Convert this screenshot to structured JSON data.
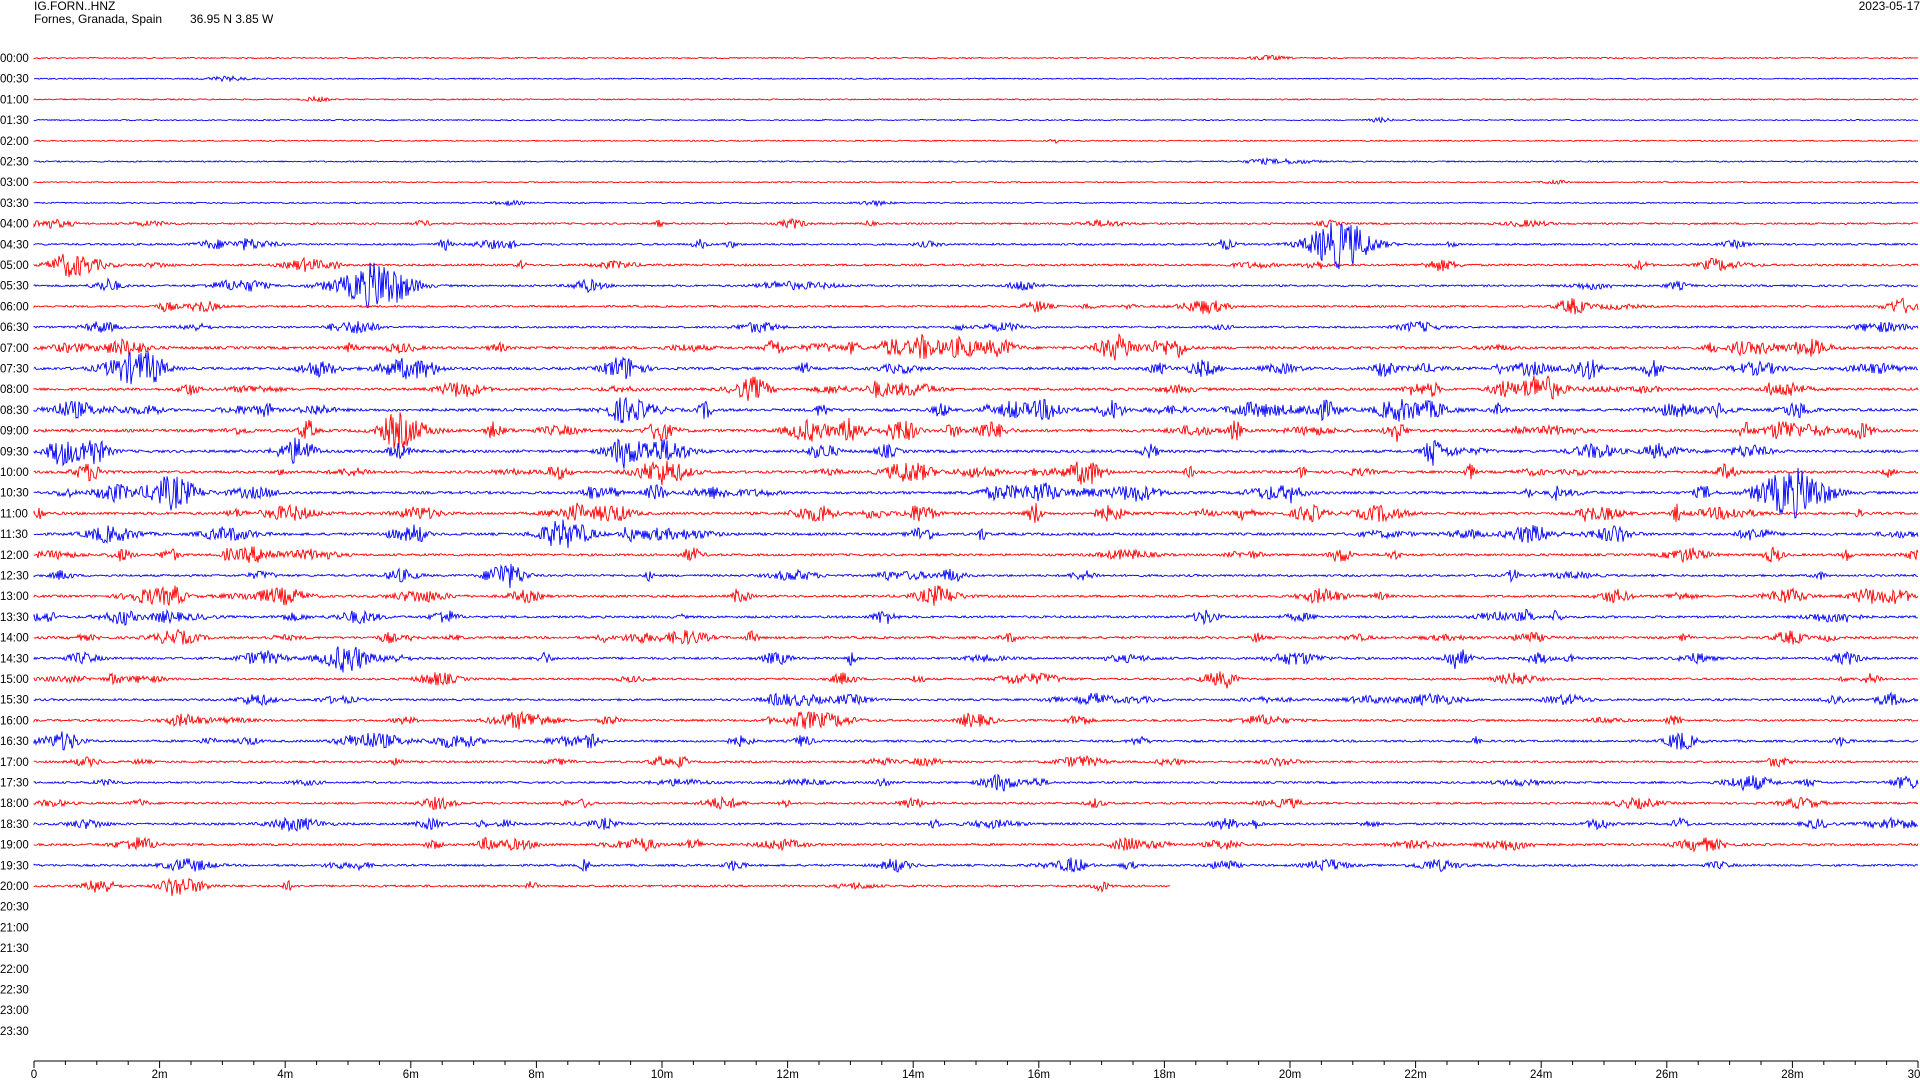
{
  "header": {
    "station": "IG.FORN..HNZ",
    "location": "Fornes, Granada, Spain",
    "coords": "36.95 N 3.85 W",
    "date": "2023-05-17"
  },
  "colors": {
    "odd": "#ff0000",
    "even": "#0000ff",
    "axis": "#000000"
  },
  "chart_data": {
    "type": "line",
    "title": "",
    "row_labels": [
      "00:00",
      "00:30",
      "01:00",
      "01:30",
      "02:00",
      "02:30",
      "03:00",
      "03:30",
      "04:00",
      "04:30",
      "05:00",
      "05:30",
      "06:00",
      "06:30",
      "07:00",
      "07:30",
      "08:00",
      "08:30",
      "09:00",
      "09:30",
      "10:00",
      "10:30",
      "11:00",
      "11:30",
      "12:00",
      "12:30",
      "13:00",
      "13:30",
      "14:00",
      "14:30",
      "15:00",
      "15:30",
      "16:00",
      "16:30",
      "17:00",
      "17:30",
      "18:00",
      "18:30",
      "19:00",
      "19:30",
      "20:00",
      "20:30",
      "21:00",
      "21:30",
      "22:00",
      "22:30",
      "23:00",
      "23:30"
    ],
    "x_ticks": [
      "0",
      "2m",
      "4m",
      "6m",
      "8m",
      "10m",
      "12m",
      "14m",
      "16m",
      "18m",
      "20m",
      "22m",
      "24m",
      "26m",
      "28m",
      "30"
    ],
    "x_range_minutes": [
      0,
      30
    ],
    "data_end_row": "20:00",
    "data_end_minute": 18.1,
    "row_activity": [
      0.02,
      0.02,
      0.03,
      0.02,
      0.03,
      0.05,
      0.03,
      0.06,
      0.25,
      0.3,
      0.35,
      0.3,
      0.3,
      0.3,
      0.6,
      0.6,
      0.55,
      0.65,
      0.7,
      0.6,
      0.55,
      0.6,
      0.6,
      0.55,
      0.45,
      0.4,
      0.45,
      0.45,
      0.45,
      0.45,
      0.35,
      0.35,
      0.4,
      0.4,
      0.35,
      0.35,
      0.35,
      0.4,
      0.4,
      0.35,
      0.35
    ],
    "major_events": [
      {
        "row": "05:30",
        "minute": 5.5
      },
      {
        "row": "04:30",
        "minute": 20.8
      },
      {
        "row": "10:30",
        "minute": 28.0
      }
    ]
  }
}
